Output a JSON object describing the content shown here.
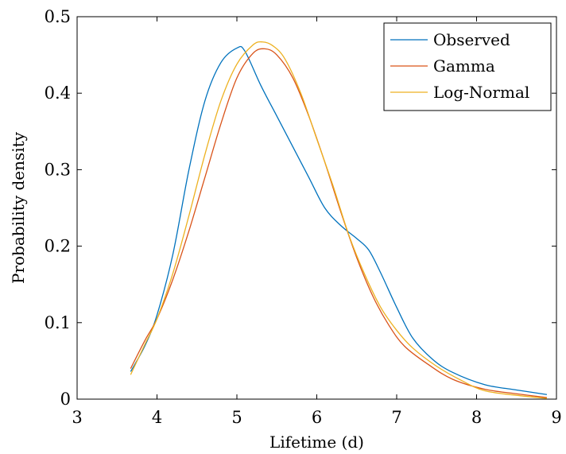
{
  "chart_data": {
    "type": "line",
    "xlabel": "Lifetime (d)",
    "ylabel": "Probability density",
    "xlim": [
      3,
      9
    ],
    "ylim": [
      0,
      0.5
    ],
    "xticks": [
      3,
      4,
      5,
      6,
      7,
      8,
      9
    ],
    "xtick_labels": [
      "3",
      "4",
      "5",
      "6",
      "7",
      "8",
      "9"
    ],
    "yticks": [
      0,
      0.1,
      0.2,
      0.3,
      0.4,
      0.5
    ],
    "ytick_labels": [
      "0",
      "0.1",
      "0.2",
      "0.3",
      "0.4",
      "0.5"
    ],
    "grid": false,
    "legend_position": "top-right",
    "series": [
      {
        "name": "Observed",
        "color": "#0072BD",
        "x": [
          3.67,
          3.85,
          4.0,
          4.2,
          4.4,
          4.6,
          4.8,
          5.0,
          5.1,
          5.3,
          5.5,
          5.7,
          5.9,
          6.1,
          6.3,
          6.5,
          6.65,
          6.8,
          7.0,
          7.2,
          7.45,
          7.7,
          8.1,
          8.5,
          8.88
        ],
        "y": [
          0.036,
          0.07,
          0.11,
          0.19,
          0.3,
          0.39,
          0.44,
          0.459,
          0.455,
          0.41,
          0.37,
          0.33,
          0.29,
          0.25,
          0.227,
          0.21,
          0.195,
          0.165,
          0.12,
          0.08,
          0.052,
          0.035,
          0.019,
          0.012,
          0.006
        ]
      },
      {
        "name": "Gamma",
        "color": "#D95319",
        "x": [
          3.67,
          3.85,
          4.0,
          4.2,
          4.4,
          4.6,
          4.8,
          5.0,
          5.2,
          5.35,
          5.5,
          5.7,
          5.9,
          6.1,
          6.3,
          6.5,
          6.7,
          6.9,
          7.1,
          7.4,
          7.7,
          8.1,
          8.5,
          8.88
        ],
        "y": [
          0.04,
          0.077,
          0.105,
          0.157,
          0.22,
          0.29,
          0.36,
          0.42,
          0.452,
          0.458,
          0.45,
          0.42,
          0.37,
          0.31,
          0.245,
          0.185,
          0.135,
          0.097,
          0.069,
          0.045,
          0.026,
          0.013,
          0.007,
          0.002
        ]
      },
      {
        "name": "Log-Normal",
        "color": "#EDB120",
        "x": [
          3.67,
          3.85,
          4.0,
          4.2,
          4.4,
          4.6,
          4.8,
          5.0,
          5.2,
          5.32,
          5.45,
          5.6,
          5.8,
          6.0,
          6.2,
          6.4,
          6.6,
          6.8,
          7.0,
          7.2,
          7.5,
          7.8,
          8.1,
          8.5,
          8.88
        ],
        "y": [
          0.032,
          0.072,
          0.105,
          0.165,
          0.24,
          0.32,
          0.39,
          0.438,
          0.463,
          0.467,
          0.462,
          0.445,
          0.4,
          0.34,
          0.28,
          0.215,
          0.163,
          0.12,
          0.09,
          0.067,
          0.043,
          0.025,
          0.011,
          0.005,
          0.001
        ]
      }
    ]
  }
}
